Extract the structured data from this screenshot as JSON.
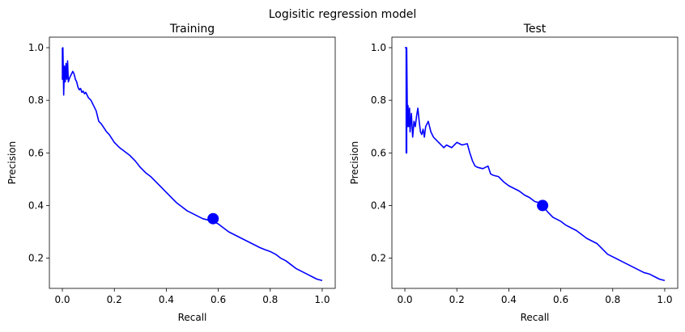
{
  "figure": {
    "title": "Logisitic regression model"
  },
  "colors": {
    "curve": "#0000ff",
    "marker": "#0000ff",
    "axes": "#000000",
    "background": "#ffffff"
  },
  "chart_data": [
    {
      "type": "line",
      "title": "Training",
      "xlabel": "Recall",
      "ylabel": "Precision",
      "xlim": [
        -0.05,
        1.05
      ],
      "ylim": [
        0.085,
        1.04
      ],
      "xticks": [
        0.0,
        0.2,
        0.4,
        0.6,
        0.8,
        1.0
      ],
      "xtick_labels": [
        "0.0",
        "0.2",
        "0.4",
        "0.6",
        "0.8",
        "1.0"
      ],
      "yticks": [
        0.2,
        0.4,
        0.6,
        0.8,
        1.0
      ],
      "ytick_labels": [
        "0.2",
        "0.4",
        "0.6",
        "0.8",
        "1.0"
      ],
      "grid": false,
      "series": [
        {
          "x": [
            0.0,
            0.0,
            0.002,
            0.005,
            0.008,
            0.011,
            0.014,
            0.017,
            0.02,
            0.023,
            0.026,
            0.03,
            0.035,
            0.04,
            0.045,
            0.05,
            0.055,
            0.06,
            0.065,
            0.07,
            0.075,
            0.08,
            0.085,
            0.09,
            0.1,
            0.11,
            0.12,
            0.13,
            0.14,
            0.15,
            0.16,
            0.17,
            0.18,
            0.2,
            0.22,
            0.24,
            0.26,
            0.28,
            0.3,
            0.32,
            0.34,
            0.36,
            0.38,
            0.4,
            0.42,
            0.44,
            0.46,
            0.48,
            0.5,
            0.52,
            0.54,
            0.56,
            0.58,
            0.6,
            0.62,
            0.64,
            0.66,
            0.68,
            0.7,
            0.72,
            0.74,
            0.76,
            0.78,
            0.8,
            0.82,
            0.84,
            0.86,
            0.88,
            0.9,
            0.92,
            0.94,
            0.96,
            0.98,
            1.0
          ],
          "y": [
            1.0,
            0.88,
            1.0,
            0.82,
            0.93,
            0.87,
            0.94,
            0.88,
            0.95,
            0.87,
            0.88,
            0.89,
            0.9,
            0.91,
            0.9,
            0.88,
            0.87,
            0.85,
            0.84,
            0.845,
            0.83,
            0.835,
            0.825,
            0.83,
            0.81,
            0.8,
            0.78,
            0.76,
            0.72,
            0.71,
            0.695,
            0.68,
            0.67,
            0.64,
            0.62,
            0.605,
            0.59,
            0.57,
            0.545,
            0.525,
            0.51,
            0.49,
            0.47,
            0.45,
            0.43,
            0.41,
            0.395,
            0.38,
            0.37,
            0.36,
            0.35,
            0.345,
            0.34,
            0.33,
            0.315,
            0.3,
            0.29,
            0.28,
            0.27,
            0.26,
            0.25,
            0.24,
            0.232,
            0.225,
            0.215,
            0.2,
            0.19,
            0.175,
            0.16,
            0.15,
            0.14,
            0.13,
            0.12,
            0.115
          ]
        }
      ],
      "highlight_point": {
        "x": 0.58,
        "y": 0.35
      }
    },
    {
      "type": "line",
      "title": "Test",
      "xlabel": "Recall",
      "ylabel": "Precision",
      "xlim": [
        -0.05,
        1.05
      ],
      "ylim": [
        0.085,
        1.04
      ],
      "xticks": [
        0.0,
        0.2,
        0.4,
        0.6,
        0.8,
        1.0
      ],
      "xtick_labels": [
        "0.0",
        "0.2",
        "0.4",
        "0.6",
        "0.8",
        "1.0"
      ],
      "yticks": [
        0.2,
        0.4,
        0.6,
        0.8,
        1.0
      ],
      "ytick_labels": [
        "0.2",
        "0.4",
        "0.6",
        "0.8",
        "1.0"
      ],
      "grid": false,
      "series": [
        {
          "x": [
            0.0,
            0.005,
            0.005,
            0.007,
            0.007,
            0.01,
            0.012,
            0.015,
            0.018,
            0.02,
            0.025,
            0.03,
            0.035,
            0.04,
            0.045,
            0.05,
            0.055,
            0.06,
            0.065,
            0.07,
            0.075,
            0.08,
            0.085,
            0.09,
            0.095,
            0.1,
            0.105,
            0.11,
            0.12,
            0.13,
            0.14,
            0.15,
            0.16,
            0.18,
            0.2,
            0.22,
            0.24,
            0.25,
            0.26,
            0.27,
            0.28,
            0.3,
            0.32,
            0.33,
            0.34,
            0.36,
            0.38,
            0.4,
            0.42,
            0.44,
            0.46,
            0.48,
            0.5,
            0.52,
            0.53,
            0.55,
            0.57,
            0.6,
            0.62,
            0.64,
            0.66,
            0.68,
            0.7,
            0.72,
            0.74,
            0.76,
            0.78,
            0.8,
            0.82,
            0.84,
            0.86,
            0.88,
            0.9,
            0.92,
            0.94,
            0.96,
            0.98,
            1.0
          ],
          "y": [
            1.0,
            1.0,
            0.6,
            0.6,
            1.0,
            0.7,
            0.78,
            0.7,
            0.77,
            0.68,
            0.75,
            0.66,
            0.72,
            0.7,
            0.74,
            0.77,
            0.72,
            0.68,
            0.67,
            0.69,
            0.66,
            0.7,
            0.71,
            0.72,
            0.7,
            0.68,
            0.67,
            0.66,
            0.65,
            0.64,
            0.63,
            0.62,
            0.63,
            0.62,
            0.64,
            0.63,
            0.635,
            0.6,
            0.57,
            0.55,
            0.545,
            0.54,
            0.55,
            0.52,
            0.515,
            0.51,
            0.49,
            0.475,
            0.465,
            0.455,
            0.44,
            0.43,
            0.415,
            0.41,
            0.4,
            0.375,
            0.355,
            0.34,
            0.325,
            0.315,
            0.305,
            0.29,
            0.275,
            0.265,
            0.255,
            0.235,
            0.215,
            0.205,
            0.195,
            0.185,
            0.175,
            0.165,
            0.155,
            0.145,
            0.14,
            0.13,
            0.12,
            0.115
          ]
        }
      ],
      "highlight_point": {
        "x": 0.53,
        "y": 0.4
      }
    }
  ]
}
